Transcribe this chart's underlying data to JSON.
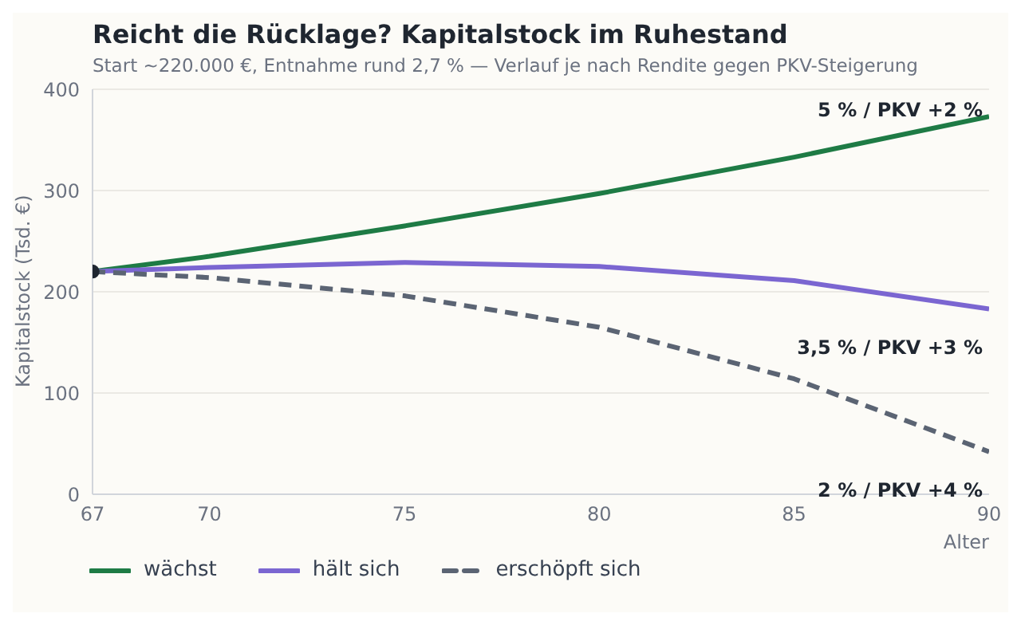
{
  "chart_data": {
    "type": "line",
    "title": "Reicht die Rücklage? Kapitalstock im Ruhestand",
    "subtitle": "Start ~220.000 €, Entnahme rund 2,7 % — Verlauf je nach Rendite gegen PKV-Steigerung",
    "xlabel": "Alter",
    "ylabel": "Kapitalstock (Tsd. €)",
    "x": [
      67,
      70,
      75,
      80,
      85,
      90
    ],
    "series": [
      {
        "name": "wächst",
        "color": "#1e7b45",
        "values": [
          220,
          235,
          265,
          297,
          333,
          373
        ],
        "line_style": "solid"
      },
      {
        "name": "hält sich",
        "color": "#7b66d1",
        "values": [
          220,
          224,
          229,
          225,
          211,
          183
        ],
        "line_style": "solid"
      },
      {
        "name": "erschöpft sich",
        "color": "#5b6473",
        "values": [
          220,
          214,
          196,
          165,
          114,
          42
        ],
        "line_style": "dashed"
      },
      {
        "type": "scatter",
        "color": "#1f2630",
        "x": [
          67
        ],
        "values": [
          220
        ],
        "marker": "circle"
      }
    ],
    "annotations": [
      "5 % / PKV +2 %",
      "3,5 % / PKV +3 %",
      "2 % / PKV +4 %"
    ],
    "xlim": [
      67,
      90
    ],
    "xticks": [
      67,
      70,
      75,
      80,
      85,
      90
    ],
    "ylim": [
      0,
      400
    ],
    "yticks": [
      0,
      100,
      200,
      300,
      400
    ],
    "grid": "y",
    "legend": "bottom"
  }
}
